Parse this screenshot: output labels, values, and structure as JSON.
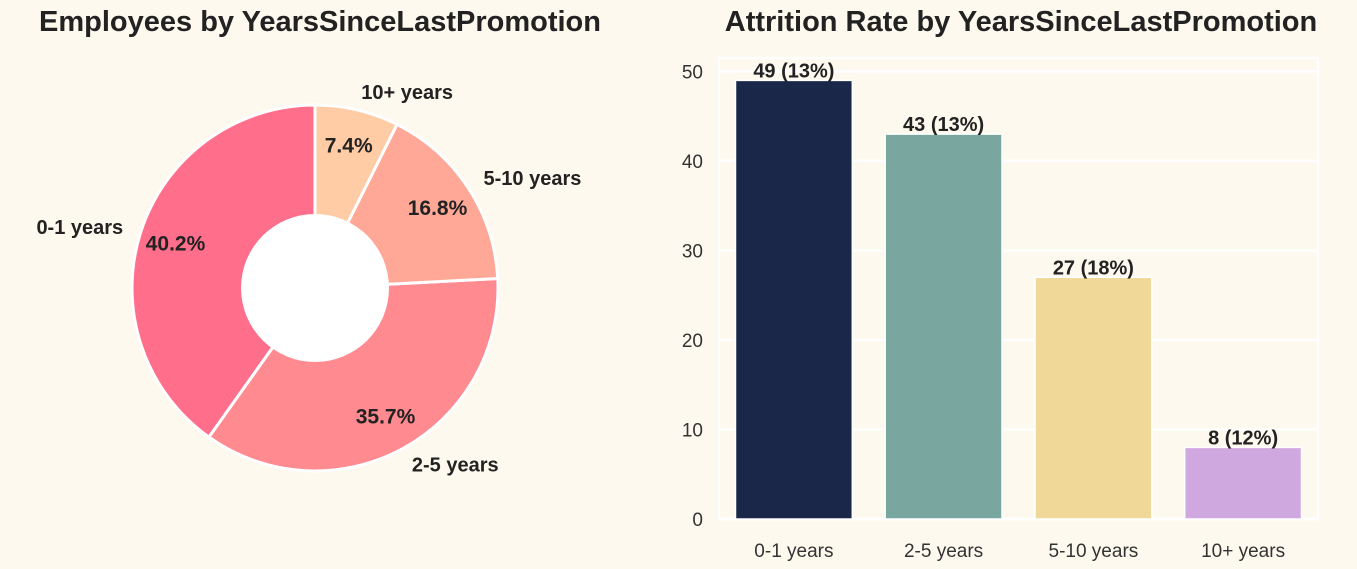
{
  "chart_data": [
    {
      "type": "pie",
      "title": "Employees by YearsSinceLastPromotion",
      "categories": [
        "0-1 years",
        "2-5 years",
        "5-10 years",
        "10+ years"
      ],
      "values": [
        40.2,
        35.7,
        16.8,
        7.4
      ],
      "value_labels": [
        "40.2%",
        "35.7%",
        "16.8%",
        "7.4%"
      ],
      "colors": [
        "#ff6e8a",
        "#ff8a90",
        "#ffa898",
        "#ffcca6"
      ],
      "donut": true,
      "hole_color": "#ffffff"
    },
    {
      "type": "bar",
      "title": "Attrition Rate by YearsSinceLastPromotion",
      "categories": [
        "0-1 years",
        "2-5 years",
        "5-10 years",
        "10+ years"
      ],
      "values": [
        49,
        43,
        27,
        8
      ],
      "value_labels": [
        "49 (13%)",
        "43 (13%)",
        "27 (18%)",
        "8 (12%)"
      ],
      "colors": [
        "#1b2749",
        "#79a69f",
        "#f0d898",
        "#cfa8df"
      ],
      "ylim": [
        0,
        51.5
      ],
      "yticks": [
        0,
        10,
        20,
        30,
        40,
        50
      ],
      "xlabel": "",
      "ylabel": "",
      "grid": true
    }
  ],
  "background_color": "#fef9ee",
  "grid_color": "#ffffff"
}
